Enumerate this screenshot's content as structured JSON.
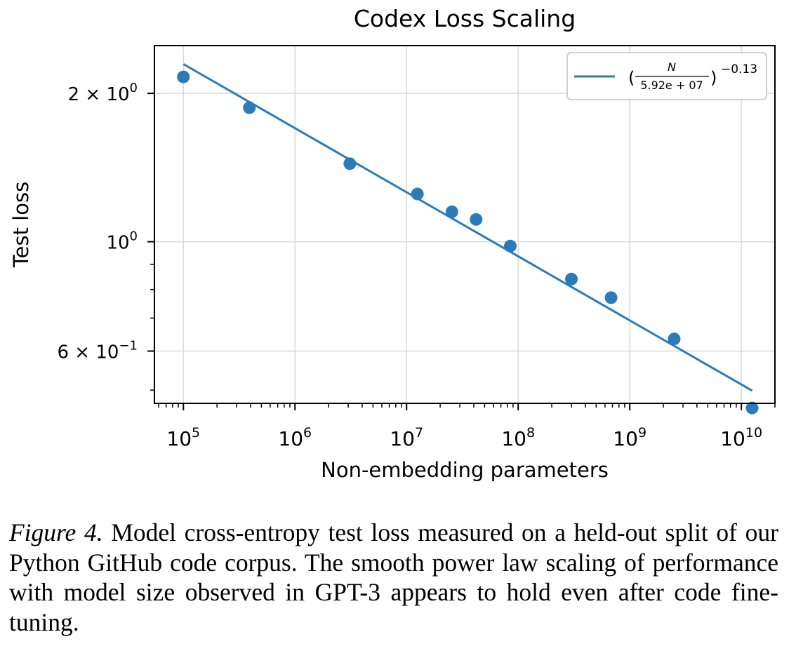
{
  "chart_data": {
    "type": "scatter",
    "title": "Codex Loss Scaling",
    "xlabel": "Non-embedding parameters",
    "ylabel": "Test loss",
    "xscale": "log",
    "yscale": "log",
    "xlim": [
      55000,
      20000000000
    ],
    "ylim": [
      0.47,
      2.5
    ],
    "grid": true,
    "legend_placement": "top-right",
    "x_ticks": [
      {
        "value": 100000,
        "base": "10",
        "exp": "5"
      },
      {
        "value": 1000000,
        "base": "10",
        "exp": "6"
      },
      {
        "value": 10000000,
        "base": "10",
        "exp": "7"
      },
      {
        "value": 100000000,
        "base": "10",
        "exp": "8"
      },
      {
        "value": 1000000000,
        "base": "10",
        "exp": "9"
      },
      {
        "value": 10000000000,
        "base": "10",
        "exp": "10"
      }
    ],
    "y_ticks": [
      {
        "value": 2,
        "base": "2 × 10",
        "exp": "0"
      },
      {
        "value": 1,
        "base": "10",
        "exp": "0"
      },
      {
        "value": 0.6,
        "base": "6 × 10",
        "exp": "−1"
      }
    ],
    "series": [
      {
        "color": "#2b7bba",
        "points": [
          {
            "x": 100000,
            "y": 2.16
          },
          {
            "x": 390000,
            "y": 1.87
          },
          {
            "x": 3100000,
            "y": 1.44
          },
          {
            "x": 12500000,
            "y": 1.25
          },
          {
            "x": 25500000,
            "y": 1.15
          },
          {
            "x": 42000000,
            "y": 1.11
          },
          {
            "x": 85000000,
            "y": 0.98
          },
          {
            "x": 300000000,
            "y": 0.84
          },
          {
            "x": 680000000,
            "y": 0.77
          },
          {
            "x": 2500000000,
            "y": 0.635
          },
          {
            "x": 12500000000,
            "y": 0.46
          }
        ]
      },
      {
        "color": "#2b7bba",
        "fit": {
          "N0": 59200000,
          "exponent": -0.13,
          "x_start": 100000,
          "x_end": 12500000000
        },
        "legend": {
          "fraction_numerator": "N",
          "fraction_denominator": "5.92e + 07",
          "exponent": "−0.13"
        }
      }
    ]
  },
  "caption": {
    "label": "Figure 4.",
    "text": " Model cross-entropy test loss measured on a held-out split of our Python GitHub code corpus. The smooth power law scaling of performance with model size observed in GPT-3 appears to hold even after code fine-tuning."
  }
}
